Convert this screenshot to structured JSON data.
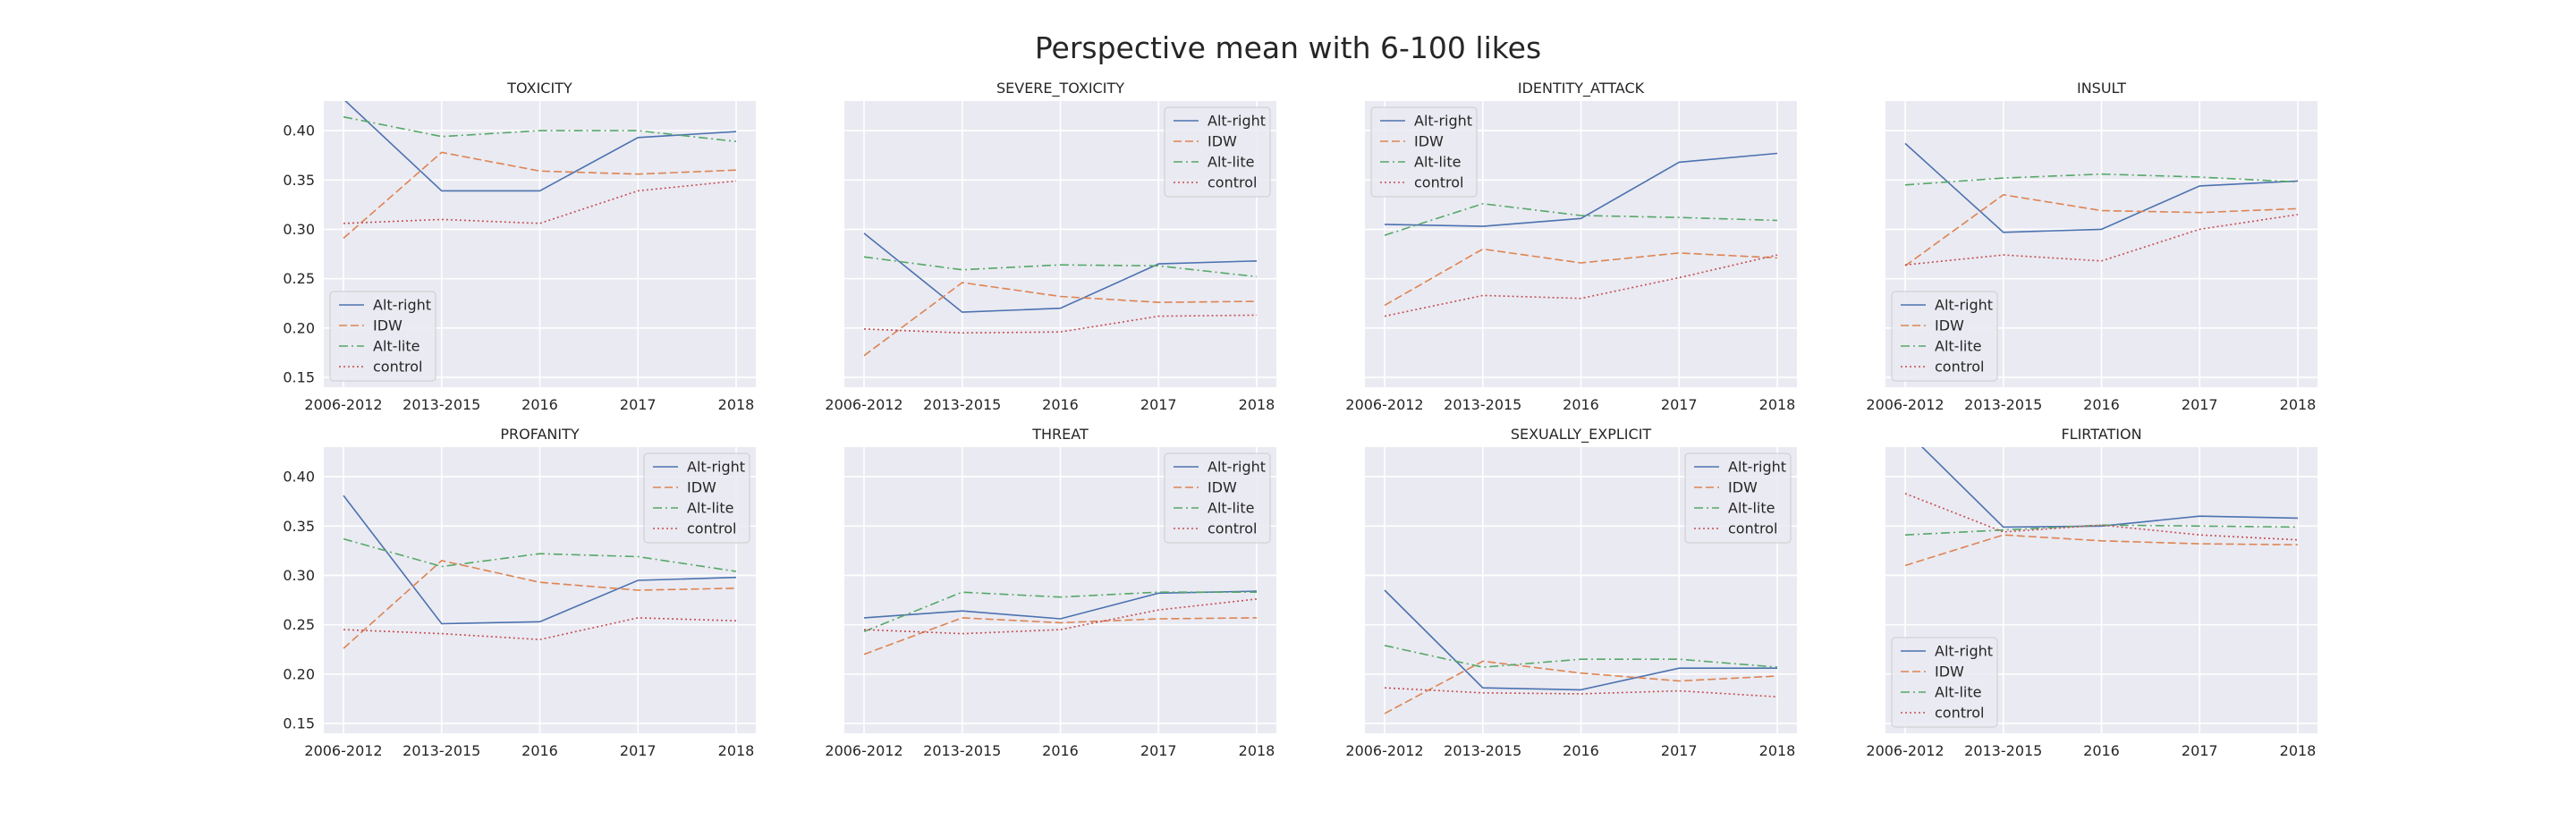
{
  "figure": {
    "title": "Perspective mean with 6-100 likes"
  },
  "style": {
    "series_colors": {
      "Alt-right": "#4c72b0",
      "IDW": "#dd8452",
      "Alt-lite": "#55a868",
      "control": "#c44e52"
    },
    "series_dash": {
      "Alt-right": "solid",
      "IDW": "dashed",
      "Alt-lite": "dashdot",
      "control": "dotted"
    },
    "plot_background": "#eaeaf2",
    "grid_color": "#ffffff"
  },
  "chart_data": [
    {
      "type": "line",
      "title": "TOXICITY",
      "categories": [
        "2006-2012",
        "2013-2015",
        "2016",
        "2017",
        "2018"
      ],
      "ylim": [
        0.14,
        0.43
      ],
      "yticks": [
        "0.15",
        "0.20",
        "0.25",
        "0.30",
        "0.35",
        "0.40"
      ],
      "show_yticks": true,
      "grid": true,
      "legend": "lower-left",
      "series": [
        {
          "name": "Alt-right",
          "values": [
            0.432,
            0.339,
            0.339,
            0.393,
            0.399
          ]
        },
        {
          "name": "IDW",
          "values": [
            0.291,
            0.378,
            0.359,
            0.356,
            0.36
          ]
        },
        {
          "name": "Alt-lite",
          "values": [
            0.414,
            0.394,
            0.4,
            0.4,
            0.389
          ]
        },
        {
          "name": "control",
          "values": [
            0.306,
            0.31,
            0.306,
            0.339,
            0.349
          ]
        }
      ]
    },
    {
      "type": "line",
      "title": "SEVERE_TOXICITY",
      "categories": [
        "2006-2012",
        "2013-2015",
        "2016",
        "2017",
        "2018"
      ],
      "ylim": [
        0.14,
        0.43
      ],
      "yticks": [
        "0.15",
        "0.20",
        "0.25",
        "0.30",
        "0.35",
        "0.40"
      ],
      "show_yticks": false,
      "grid": true,
      "legend": "upper-right",
      "series": [
        {
          "name": "Alt-right",
          "values": [
            0.296,
            0.216,
            0.22,
            0.265,
            0.268
          ]
        },
        {
          "name": "IDW",
          "values": [
            0.172,
            0.246,
            0.232,
            0.226,
            0.227
          ]
        },
        {
          "name": "Alt-lite",
          "values": [
            0.272,
            0.259,
            0.264,
            0.263,
            0.252
          ]
        },
        {
          "name": "control",
          "values": [
            0.199,
            0.195,
            0.196,
            0.212,
            0.213
          ]
        }
      ]
    },
    {
      "type": "line",
      "title": "IDENTITY_ATTACK",
      "categories": [
        "2006-2012",
        "2013-2015",
        "2016",
        "2017",
        "2018"
      ],
      "ylim": [
        0.14,
        0.43
      ],
      "yticks": [
        "0.15",
        "0.20",
        "0.25",
        "0.30",
        "0.35",
        "0.40"
      ],
      "show_yticks": false,
      "grid": true,
      "legend": "upper-left",
      "series": [
        {
          "name": "Alt-right",
          "values": [
            0.305,
            0.303,
            0.311,
            0.368,
            0.377
          ]
        },
        {
          "name": "IDW",
          "values": [
            0.223,
            0.28,
            0.266,
            0.276,
            0.271
          ]
        },
        {
          "name": "Alt-lite",
          "values": [
            0.294,
            0.326,
            0.314,
            0.312,
            0.309
          ]
        },
        {
          "name": "control",
          "values": [
            0.212,
            0.233,
            0.23,
            0.251,
            0.274
          ]
        }
      ]
    },
    {
      "type": "line",
      "title": "INSULT",
      "categories": [
        "2006-2012",
        "2013-2015",
        "2016",
        "2017",
        "2018"
      ],
      "ylim": [
        0.14,
        0.43
      ],
      "yticks": [
        "0.15",
        "0.20",
        "0.25",
        "0.30",
        "0.35",
        "0.40"
      ],
      "show_yticks": false,
      "grid": true,
      "legend": "lower-left",
      "series": [
        {
          "name": "Alt-right",
          "values": [
            0.387,
            0.297,
            0.3,
            0.344,
            0.349
          ]
        },
        {
          "name": "IDW",
          "values": [
            0.263,
            0.335,
            0.319,
            0.317,
            0.321
          ]
        },
        {
          "name": "Alt-lite",
          "values": [
            0.345,
            0.352,
            0.356,
            0.353,
            0.348
          ]
        },
        {
          "name": "control",
          "values": [
            0.264,
            0.274,
            0.268,
            0.3,
            0.315
          ]
        }
      ]
    },
    {
      "type": "line",
      "title": "PROFANITY",
      "categories": [
        "2006-2012",
        "2013-2015",
        "2016",
        "2017",
        "2018"
      ],
      "ylim": [
        0.14,
        0.43
      ],
      "yticks": [
        "0.15",
        "0.20",
        "0.25",
        "0.30",
        "0.35",
        "0.40"
      ],
      "show_yticks": true,
      "grid": true,
      "legend": "upper-right",
      "series": [
        {
          "name": "Alt-right",
          "values": [
            0.381,
            0.251,
            0.253,
            0.295,
            0.298
          ]
        },
        {
          "name": "IDW",
          "values": [
            0.226,
            0.315,
            0.293,
            0.285,
            0.287
          ]
        },
        {
          "name": "Alt-lite",
          "values": [
            0.337,
            0.309,
            0.322,
            0.319,
            0.304
          ]
        },
        {
          "name": "control",
          "values": [
            0.245,
            0.241,
            0.235,
            0.257,
            0.254
          ]
        }
      ]
    },
    {
      "type": "line",
      "title": "THREAT",
      "categories": [
        "2006-2012",
        "2013-2015",
        "2016",
        "2017",
        "2018"
      ],
      "ylim": [
        0.14,
        0.43
      ],
      "yticks": [
        "0.15",
        "0.20",
        "0.25",
        "0.30",
        "0.35",
        "0.40"
      ],
      "show_yticks": false,
      "grid": true,
      "legend": "upper-right",
      "series": [
        {
          "name": "Alt-right",
          "values": [
            0.257,
            0.264,
            0.256,
            0.282,
            0.284
          ]
        },
        {
          "name": "IDW",
          "values": [
            0.22,
            0.257,
            0.252,
            0.256,
            0.257
          ]
        },
        {
          "name": "Alt-lite",
          "values": [
            0.243,
            0.283,
            0.278,
            0.283,
            0.283
          ]
        },
        {
          "name": "control",
          "values": [
            0.245,
            0.241,
            0.245,
            0.265,
            0.276
          ]
        }
      ]
    },
    {
      "type": "line",
      "title": "SEXUALLY_EXPLICIT",
      "categories": [
        "2006-2012",
        "2013-2015",
        "2016",
        "2017",
        "2018"
      ],
      "ylim": [
        0.14,
        0.43
      ],
      "yticks": [
        "0.15",
        "0.20",
        "0.25",
        "0.30",
        "0.35",
        "0.40"
      ],
      "show_yticks": false,
      "grid": true,
      "legend": "upper-right",
      "series": [
        {
          "name": "Alt-right",
          "values": [
            0.285,
            0.186,
            0.184,
            0.206,
            0.206
          ]
        },
        {
          "name": "IDW",
          "values": [
            0.16,
            0.213,
            0.201,
            0.193,
            0.198
          ]
        },
        {
          "name": "Alt-lite",
          "values": [
            0.229,
            0.207,
            0.215,
            0.215,
            0.207
          ]
        },
        {
          "name": "control",
          "values": [
            0.186,
            0.181,
            0.18,
            0.183,
            0.177
          ]
        }
      ]
    },
    {
      "type": "line",
      "title": "FLIRTATION",
      "categories": [
        "2006-2012",
        "2013-2015",
        "2016",
        "2017",
        "2018"
      ],
      "ylim": [
        0.14,
        0.43
      ],
      "yticks": [
        "0.15",
        "0.20",
        "0.25",
        "0.30",
        "0.35",
        "0.40"
      ],
      "show_yticks": false,
      "grid": true,
      "legend": "lower-left",
      "series": [
        {
          "name": "Alt-right",
          "values": [
            0.447,
            0.349,
            0.35,
            0.36,
            0.358
          ]
        },
        {
          "name": "IDW",
          "values": [
            0.31,
            0.341,
            0.335,
            0.332,
            0.331
          ]
        },
        {
          "name": "Alt-lite",
          "values": [
            0.341,
            0.346,
            0.351,
            0.35,
            0.349
          ]
        },
        {
          "name": "control",
          "values": [
            0.383,
            0.344,
            0.351,
            0.341,
            0.336
          ]
        }
      ]
    }
  ]
}
